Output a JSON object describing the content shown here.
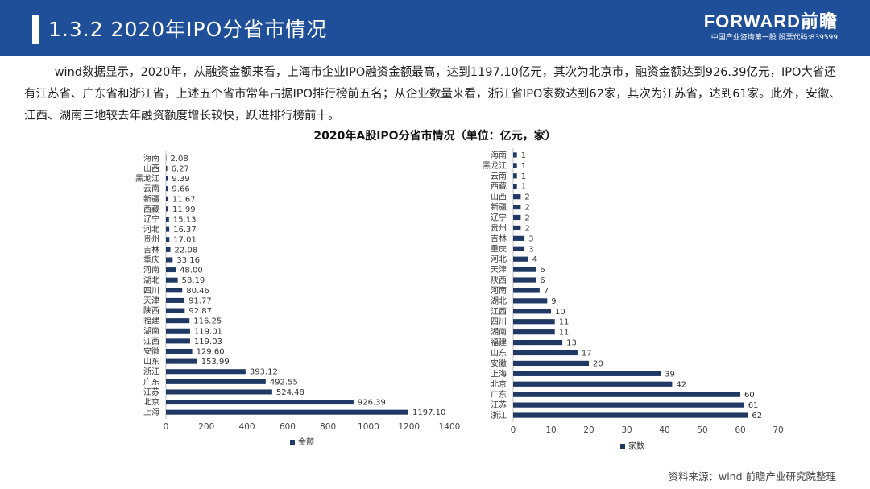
{
  "header": {
    "title": "1.3.2 2020年IPO分省市情况",
    "brand_logo": "FORWARD前瞻",
    "brand_tagline": "中国产业咨询第一股 股票代码:839599"
  },
  "body_text": "wind数据显示，2020年，从融资金额来看，上海市企业IPO融资金额最高，达到1197.10亿元，其次为北京市，融资金额达到926.39亿元，IPO大省还有江苏省、广东省和浙江省，上述五个省市常年占据IPO排行榜前五名；从企业数量来看，浙江省IPO家数达到62家，其次为江苏省，达到61家。此外，安徽、江西、湖南三地较去年融资额度增长较快，跃进排行榜前十。",
  "chart_title": "2020年A股IPO分省市情况（单位：亿元，家）",
  "source": "资料来源：wind 前瞻产业研究院整理",
  "colors": {
    "header": "#1f4f99",
    "bar": "#1f3864"
  },
  "chart_data": [
    {
      "type": "bar",
      "orientation": "horizontal",
      "categories": [
        "海南",
        "山西",
        "黑龙江",
        "云南",
        "新疆",
        "西藏",
        "辽宁",
        "河北",
        "贵州",
        "吉林",
        "重庆",
        "河南",
        "湖北",
        "四川",
        "天津",
        "陕西",
        "福建",
        "湖南",
        "江西",
        "安徽",
        "山东",
        "浙江",
        "广东",
        "江苏",
        "北京",
        "上海"
      ],
      "series": [
        {
          "name": "金额",
          "values": [
            2.08,
            6.27,
            9.39,
            9.66,
            11.67,
            11.99,
            15.13,
            16.37,
            17.01,
            22.08,
            33.16,
            48.0,
            58.19,
            80.46,
            91.77,
            92.87,
            116.25,
            119.01,
            119.03,
            129.6,
            153.99,
            393.12,
            492.55,
            524.48,
            926.39,
            1197.1
          ],
          "labels": [
            "2.08",
            "6.27",
            "9.39",
            "9.66",
            "11.67",
            "11.99",
            "15.13",
            "16.37",
            "17.01",
            "22.08",
            "33.16",
            "48.00",
            "58.19",
            "80.46",
            "91.77",
            "92.87",
            "116.25",
            "119.01",
            "119.03",
            "129.60",
            "153.99",
            "393.12",
            "492.55",
            "524.48",
            "926.39",
            "1197.10"
          ]
        }
      ],
      "xlim": [
        0,
        1400
      ],
      "xticks": [
        0,
        200,
        400,
        600,
        800,
        1000,
        1200,
        1400
      ],
      "legend": "bottom-center",
      "grid": false
    },
    {
      "type": "bar",
      "orientation": "horizontal",
      "categories": [
        "海南",
        "黑龙江",
        "云南",
        "西藏",
        "山西",
        "新疆",
        "辽宁",
        "贵州",
        "吉林",
        "重庆",
        "河北",
        "天津",
        "陕西",
        "河南",
        "湖北",
        "江西",
        "四川",
        "湖南",
        "福建",
        "山东",
        "安徽",
        "上海",
        "北京",
        "广东",
        "江苏",
        "浙江"
      ],
      "series": [
        {
          "name": "家数",
          "values": [
            1,
            1,
            1,
            1,
            2,
            2,
            2,
            2,
            3,
            3,
            4,
            6,
            6,
            7,
            9,
            10,
            11,
            11,
            13,
            17,
            20,
            39,
            42,
            60,
            61,
            62
          ],
          "labels": [
            "1",
            "1",
            "1",
            "1",
            "2",
            "2",
            "2",
            "2",
            "3",
            "3",
            "4",
            "6",
            "6",
            "7",
            "9",
            "10",
            "11",
            "11",
            "13",
            "17",
            "20",
            "39",
            "42",
            "60",
            "61",
            "62"
          ]
        }
      ],
      "xlim": [
        0,
        70
      ],
      "xticks": [
        0,
        10,
        20,
        30,
        40,
        50,
        60,
        70
      ],
      "legend": "bottom-center",
      "grid": false
    }
  ]
}
